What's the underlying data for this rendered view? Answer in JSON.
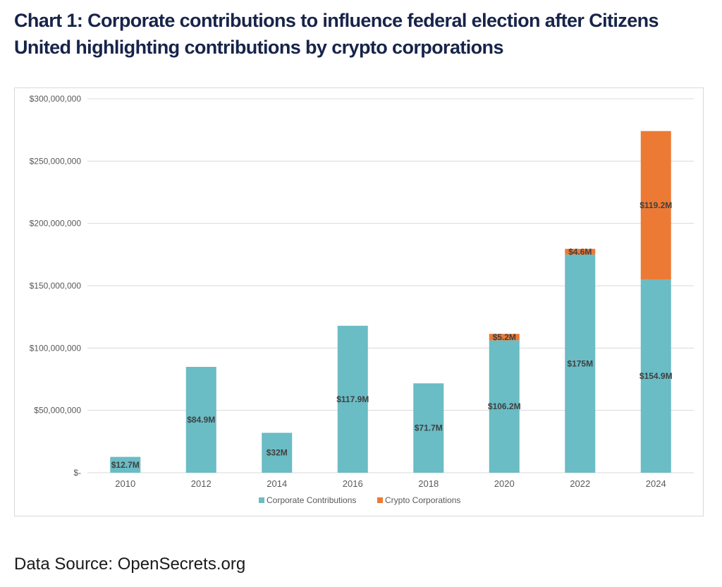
{
  "title": "Chart 1: Corporate contributions to influence federal election after Citizens United highlighting contributions by crypto corporations",
  "source": "Data Source: OpenSecrets.org",
  "colors": {
    "corporate": "#6abcc5",
    "crypto": "#ec7a34",
    "grid": "#d9d9d9",
    "text": "#595959",
    "label": "#404040"
  },
  "chart_data": {
    "type": "bar",
    "stacked": true,
    "title": "",
    "xlabel": "",
    "ylabel": "",
    "ylim": [
      0,
      300000000
    ],
    "yticks": [
      0,
      50000000,
      100000000,
      150000000,
      200000000,
      250000000,
      300000000
    ],
    "ytick_labels": [
      "$-",
      "$50,000,000",
      "$100,000,000",
      "$150,000,000",
      "$200,000,000",
      "$250,000,000",
      "$300,000,000"
    ],
    "grid": true,
    "legend_position": "bottom",
    "categories": [
      "2010",
      "2012",
      "2014",
      "2016",
      "2018",
      "2020",
      "2022",
      "2024"
    ],
    "series": [
      {
        "name": "Corporate Contributions",
        "color": "#6abcc5",
        "values": [
          12700000,
          84900000,
          32000000,
          117900000,
          71700000,
          106200000,
          175000000,
          154900000
        ],
        "labels": [
          "$12.7M",
          "$84.9M",
          "$32M",
          "$117.9M",
          "$71.7M",
          "$106.2M",
          "$175M",
          "$154.9M"
        ]
      },
      {
        "name": "Crypto Corporations",
        "color": "#ec7a34",
        "values": [
          null,
          null,
          null,
          null,
          null,
          5200000,
          4600000,
          119200000
        ],
        "labels": [
          "",
          "",
          "",
          "",
          "",
          "$5.2M",
          "$4.6M",
          "$119.2M"
        ]
      }
    ]
  }
}
